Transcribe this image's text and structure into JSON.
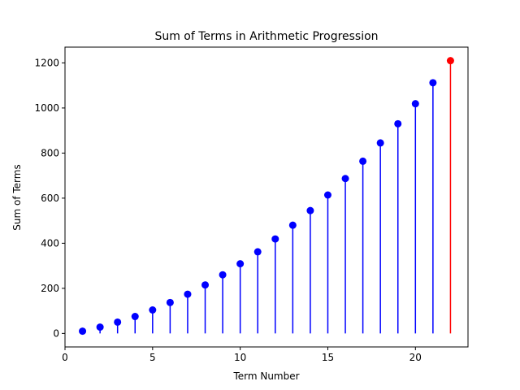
{
  "chart_data": {
    "type": "stem",
    "title": "Sum of Terms in Arithmetic Progression",
    "xlabel": "Term Number",
    "ylabel": "Sum of Terms",
    "xlim": [
      0,
      23
    ],
    "ylim": [
      -60,
      1270
    ],
    "xticks": [
      0,
      5,
      10,
      15,
      20
    ],
    "yticks": [
      0,
      200,
      400,
      600,
      800,
      1000,
      1200
    ],
    "grid": false,
    "baseline": 0,
    "series": [
      {
        "color": "#0000ff",
        "x": [
          1,
          2,
          3,
          4,
          5,
          6,
          7,
          8,
          9,
          10,
          11,
          12,
          13,
          14,
          15,
          16,
          17,
          18,
          19,
          20,
          21
        ],
        "values": [
          10,
          28,
          50,
          75,
          104,
          137,
          174,
          215,
          260,
          309,
          362,
          419,
          480,
          545,
          614,
          687,
          764,
          845,
          930,
          1019,
          1112
        ]
      },
      {
        "color": "#ff0000",
        "x": [
          22
        ],
        "values": [
          1210
        ]
      }
    ]
  }
}
